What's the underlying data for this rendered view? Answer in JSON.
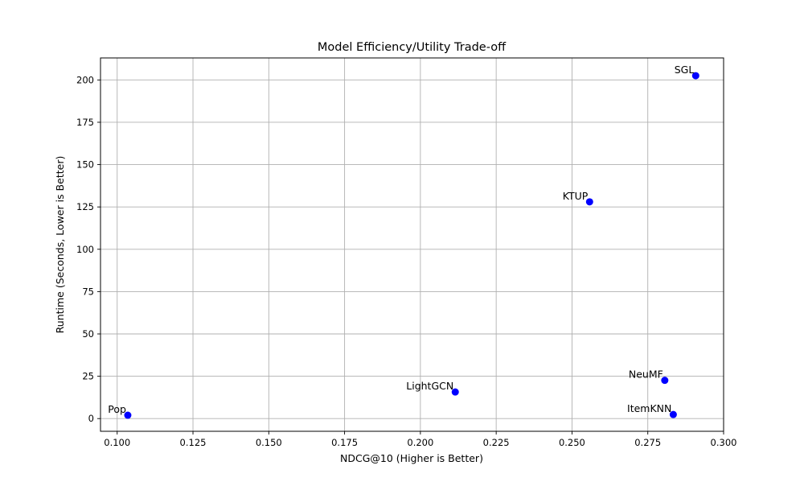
{
  "chart_data": {
    "type": "scatter",
    "title": "Model Efficiency/Utility Trade-off",
    "xlabel": "NDCG@10 (Higher is Better)",
    "ylabel": "Runtime (Seconds, Lower is Better)",
    "xlim": [
      0.0945,
      0.3
    ],
    "ylim": [
      -7.5,
      213
    ],
    "grid": true,
    "x_ticks": [
      {
        "value": 0.1,
        "label": "0.100"
      },
      {
        "value": 0.125,
        "label": "0.125"
      },
      {
        "value": 0.15,
        "label": "0.150"
      },
      {
        "value": 0.175,
        "label": "0.175"
      },
      {
        "value": 0.2,
        "label": "0.200"
      },
      {
        "value": 0.225,
        "label": "0.225"
      },
      {
        "value": 0.25,
        "label": "0.250"
      },
      {
        "value": 0.275,
        "label": "0.275"
      },
      {
        "value": 0.3,
        "label": "0.300"
      }
    ],
    "y_ticks": [
      {
        "value": 0,
        "label": "0"
      },
      {
        "value": 25,
        "label": "25"
      },
      {
        "value": 50,
        "label": "50"
      },
      {
        "value": 75,
        "label": "75"
      },
      {
        "value": 100,
        "label": "100"
      },
      {
        "value": 125,
        "label": "125"
      },
      {
        "value": 150,
        "label": "150"
      },
      {
        "value": 175,
        "label": "175"
      },
      {
        "value": 200,
        "label": "200"
      }
    ],
    "series": [
      {
        "name": "models",
        "color": "#0000ff",
        "points": [
          {
            "label": "Pop",
            "x": 0.1035,
            "y": 2.0
          },
          {
            "label": "LightGCN",
            "x": 0.2115,
            "y": 15.7
          },
          {
            "label": "KTUP",
            "x": 0.2558,
            "y": 128.0
          },
          {
            "label": "NeuMF",
            "x": 0.2806,
            "y": 22.6
          },
          {
            "label": "ItemKNN",
            "x": 0.2834,
            "y": 2.4
          },
          {
            "label": "SGL",
            "x": 0.2908,
            "y": 202.5
          }
        ]
      }
    ]
  }
}
